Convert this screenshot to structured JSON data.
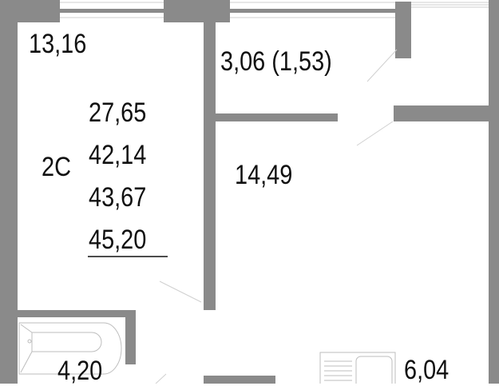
{
  "plan": {
    "wall_color": "#8a8a8a",
    "rooms": {
      "room_1_area": "13,16",
      "loggia_area": "3,06 (1,53)",
      "room_2_area": "14,49",
      "bathroom_area": "4,20",
      "kitchen_area": "6,04"
    },
    "apartment": {
      "type": "2С",
      "living_area": "27,65",
      "total_area": "42,14",
      "total_area_with_loggia_coef": "43,67",
      "total_area_with_loggia": "45,20"
    }
  }
}
